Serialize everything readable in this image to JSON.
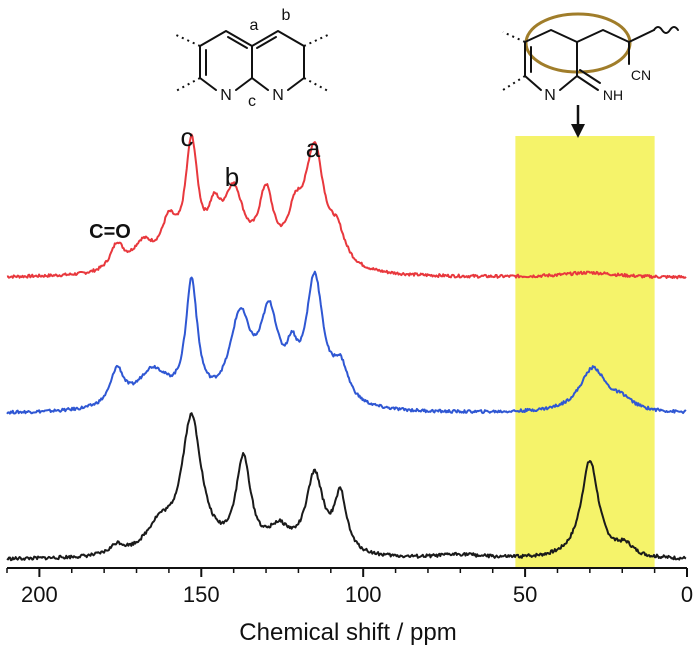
{
  "chart_data": {
    "type": "line",
    "xlabel": "Chemical shift / ppm",
    "xlim": [
      210,
      0
    ],
    "xticks": [
      200,
      150,
      100,
      50,
      0
    ],
    "highlight_region": {
      "x_from": 53,
      "x_to": 10,
      "color": "#f5f36a"
    },
    "peak_labels": [
      {
        "text": "c",
        "x": 153
      },
      {
        "text": "b",
        "x": 140
      },
      {
        "text": "a",
        "x": 115
      },
      {
        "text": "C=O",
        "x": 178
      }
    ],
    "series": [
      {
        "color": "#e8383d",
        "baseline": 0.0,
        "peaks": [
          {
            "center": 176,
            "height": 0.22,
            "width": 2.5
          },
          {
            "center": 168,
            "height": 0.22,
            "width": 4
          },
          {
            "center": 160,
            "height": 0.35,
            "width": 3
          },
          {
            "center": 153,
            "height": 1.0,
            "width": 2.4
          },
          {
            "center": 146,
            "height": 0.35,
            "width": 2.5
          },
          {
            "center": 140,
            "height": 0.62,
            "width": 4
          },
          {
            "center": 130,
            "height": 0.58,
            "width": 2.8
          },
          {
            "center": 121,
            "height": 0.35,
            "width": 3
          },
          {
            "center": 115,
            "height": 0.98,
            "width": 3.6
          },
          {
            "center": 108,
            "height": 0.25,
            "width": 3
          },
          {
            "center": 30,
            "height": 0.04,
            "width": 10
          }
        ]
      },
      {
        "color": "#2f57d3",
        "baseline": 0.0,
        "peaks": [
          {
            "center": 176,
            "height": 0.3,
            "width": 2.5
          },
          {
            "center": 165,
            "height": 0.32,
            "width": 6
          },
          {
            "center": 153,
            "height": 1.0,
            "width": 2.2
          },
          {
            "center": 138,
            "height": 0.72,
            "width": 4
          },
          {
            "center": 129,
            "height": 0.72,
            "width": 3.5
          },
          {
            "center": 122,
            "height": 0.3,
            "width": 2
          },
          {
            "center": 115,
            "height": 1.05,
            "width": 3.2
          },
          {
            "center": 107,
            "height": 0.3,
            "width": 3
          },
          {
            "center": 29,
            "height": 0.37,
            "width": 5
          },
          {
            "center": 20,
            "height": 0.08,
            "width": 4
          }
        ]
      },
      {
        "color": "#1a1a1a",
        "baseline": 0.0,
        "peaks": [
          {
            "center": 176,
            "height": 0.07,
            "width": 2.5
          },
          {
            "center": 163,
            "height": 0.2,
            "width": 5
          },
          {
            "center": 153,
            "height": 1.0,
            "width": 3.8
          },
          {
            "center": 137,
            "height": 0.68,
            "width": 2.8
          },
          {
            "center": 126,
            "height": 0.17,
            "width": 4
          },
          {
            "center": 115,
            "height": 0.58,
            "width": 3.2
          },
          {
            "center": 107,
            "height": 0.42,
            "width": 2.3
          },
          {
            "center": 70,
            "height": 0.03,
            "width": 8
          },
          {
            "center": 30,
            "height": 0.72,
            "width": 3.3
          },
          {
            "center": 19,
            "height": 0.08,
            "width": 3
          }
        ]
      }
    ]
  },
  "structures": {
    "left": {
      "site_a": "a",
      "site_b": "b",
      "site_c": "c",
      "atom_n1": "N",
      "atom_n2": "N"
    },
    "right": {
      "atom_n": "N",
      "group_imine": "NH",
      "group_nitrile": "CN"
    }
  }
}
